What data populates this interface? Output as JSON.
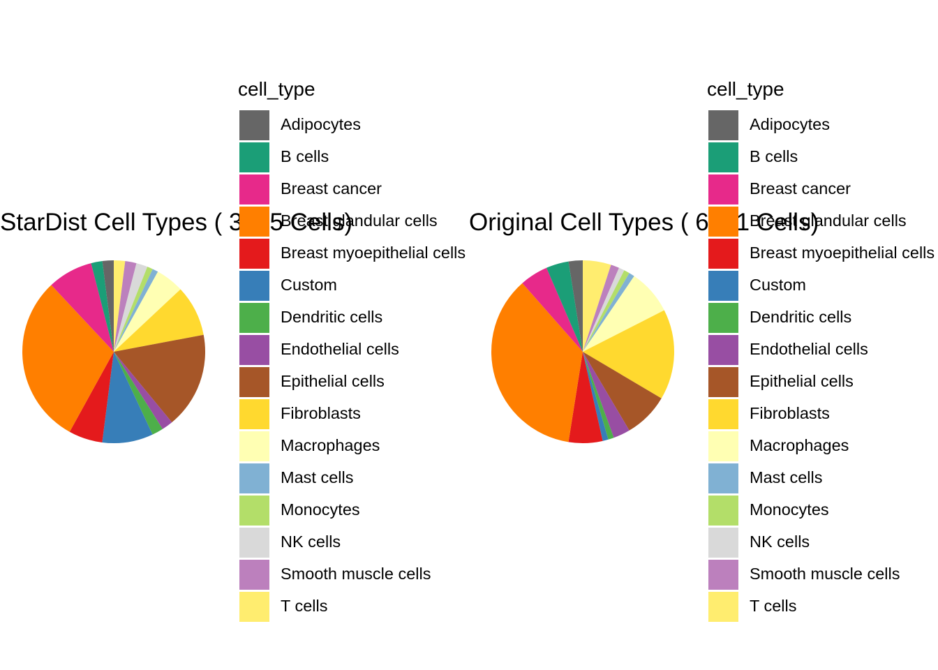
{
  "chart_data": [
    {
      "type": "pie",
      "title": "StarDist Cell Types ( 3555  Cells)",
      "legend_title": "cell_type",
      "legend_position": "right",
      "categories": [
        "Adipocytes",
        "B cells",
        "Breast cancer",
        "Breast glandular cells",
        "Breast myoepithelial cells",
        "Custom",
        "Dendritic cells",
        "Endothelial cells",
        "Epithelial cells",
        "Fibroblasts",
        "Macrophages",
        "Mast cells",
        "Monocytes",
        "NK cells",
        "Smooth muscle cells",
        "T cells"
      ],
      "values": [
        71,
        71,
        284,
        1066,
        213,
        320,
        71,
        71,
        604,
        320,
        178,
        36,
        36,
        71,
        71,
        71
      ],
      "slice_order": [
        "T cells",
        "Smooth muscle cells",
        "NK cells",
        "Monocytes",
        "Mast cells",
        "Macrophages",
        "Fibroblasts",
        "Epithelial cells",
        "Endothelial cells",
        "Dendritic cells",
        "Custom",
        "Breast myoepithelial cells",
        "Breast glandular cells",
        "Breast cancer",
        "B cells",
        "Adipocytes"
      ]
    },
    {
      "type": "pie",
      "title": "Original Cell Types ( 6481  Cells)",
      "legend_title": "cell_type",
      "legend_position": "right",
      "categories": [
        "Adipocytes",
        "B cells",
        "Breast cancer",
        "Breast glandular cells",
        "Breast myoepithelial cells",
        "Custom",
        "Dendritic cells",
        "Endothelial cells",
        "Epithelial cells",
        "Fibroblasts",
        "Macrophages",
        "Mast cells",
        "Monocytes",
        "NK cells",
        "Smooth muscle cells",
        "T cells"
      ],
      "values": [
        162,
        259,
        324,
        2333,
        389,
        65,
        65,
        194,
        518,
        1037,
        518,
        65,
        65,
        65,
        97,
        324
      ],
      "slice_order": [
        "T cells",
        "Smooth muscle cells",
        "NK cells",
        "Monocytes",
        "Mast cells",
        "Macrophages",
        "Fibroblasts",
        "Epithelial cells",
        "Endothelial cells",
        "Dendritic cells",
        "Custom",
        "Breast myoepithelial cells",
        "Breast glandular cells",
        "Breast cancer",
        "B cells",
        "Adipocytes"
      ]
    }
  ],
  "colors": {
    "Adipocytes": "#666666",
    "B cells": "#1B9E77",
    "Breast cancer": "#E7298A",
    "Breast glandular cells": "#FF7F00",
    "Breast myoepithelial cells": "#E41A1C",
    "Custom": "#377EB8",
    "Dendritic cells": "#4DAF4A",
    "Endothelial cells": "#984EA3",
    "Epithelial cells": "#A65628",
    "Fibroblasts": "#FFD92F",
    "Macrophages": "#FFFFB3",
    "Mast cells": "#80B1D3",
    "Monocytes": "#B3DE69",
    "NK cells": "#D9D9D9",
    "Smooth muscle cells": "#BC80BD",
    "T cells": "#FFED6F"
  }
}
